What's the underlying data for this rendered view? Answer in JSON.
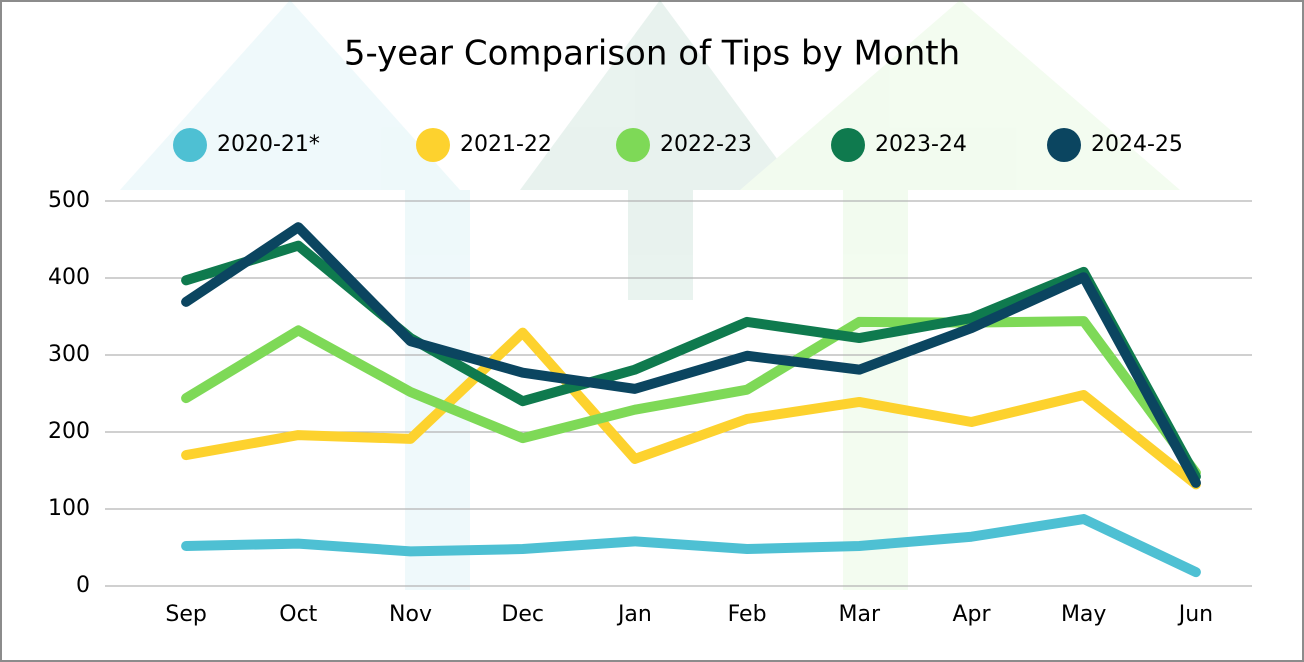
{
  "chart_data": {
    "type": "line",
    "title": "5-year Comparison of Tips by Month",
    "categories": [
      "Sep",
      "Oct",
      "Nov",
      "Dec",
      "Jan",
      "Feb",
      "Mar",
      "Apr",
      "May",
      "Jun"
    ],
    "series": [
      {
        "name": "2020-21*",
        "color": "#4ec0d3",
        "values": [
          52,
          55,
          45,
          48,
          58,
          48,
          52,
          64,
          87,
          18
        ]
      },
      {
        "name": "2021-22",
        "color": "#fdd22e",
        "values": [
          170,
          196,
          191,
          329,
          165,
          217,
          239,
          213,
          248,
          132
        ]
      },
      {
        "name": "2022-23",
        "color": "#7ed957",
        "values": [
          244,
          332,
          252,
          192,
          229,
          255,
          343,
          342,
          344,
          147
        ]
      },
      {
        "name": "2023-24",
        "color": "#0f7a4e",
        "values": [
          397,
          442,
          322,
          240,
          281,
          343,
          322,
          348,
          408,
          142
        ]
      },
      {
        "name": "2024-25",
        "color": "#0b4560",
        "values": [
          369,
          466,
          318,
          277,
          256,
          299,
          281,
          335,
          401,
          134
        ]
      }
    ],
    "ylim": [
      0,
      500
    ],
    "yticks": [
      0,
      100,
      200,
      300,
      400,
      500
    ],
    "grid": true,
    "legend": "top"
  }
}
